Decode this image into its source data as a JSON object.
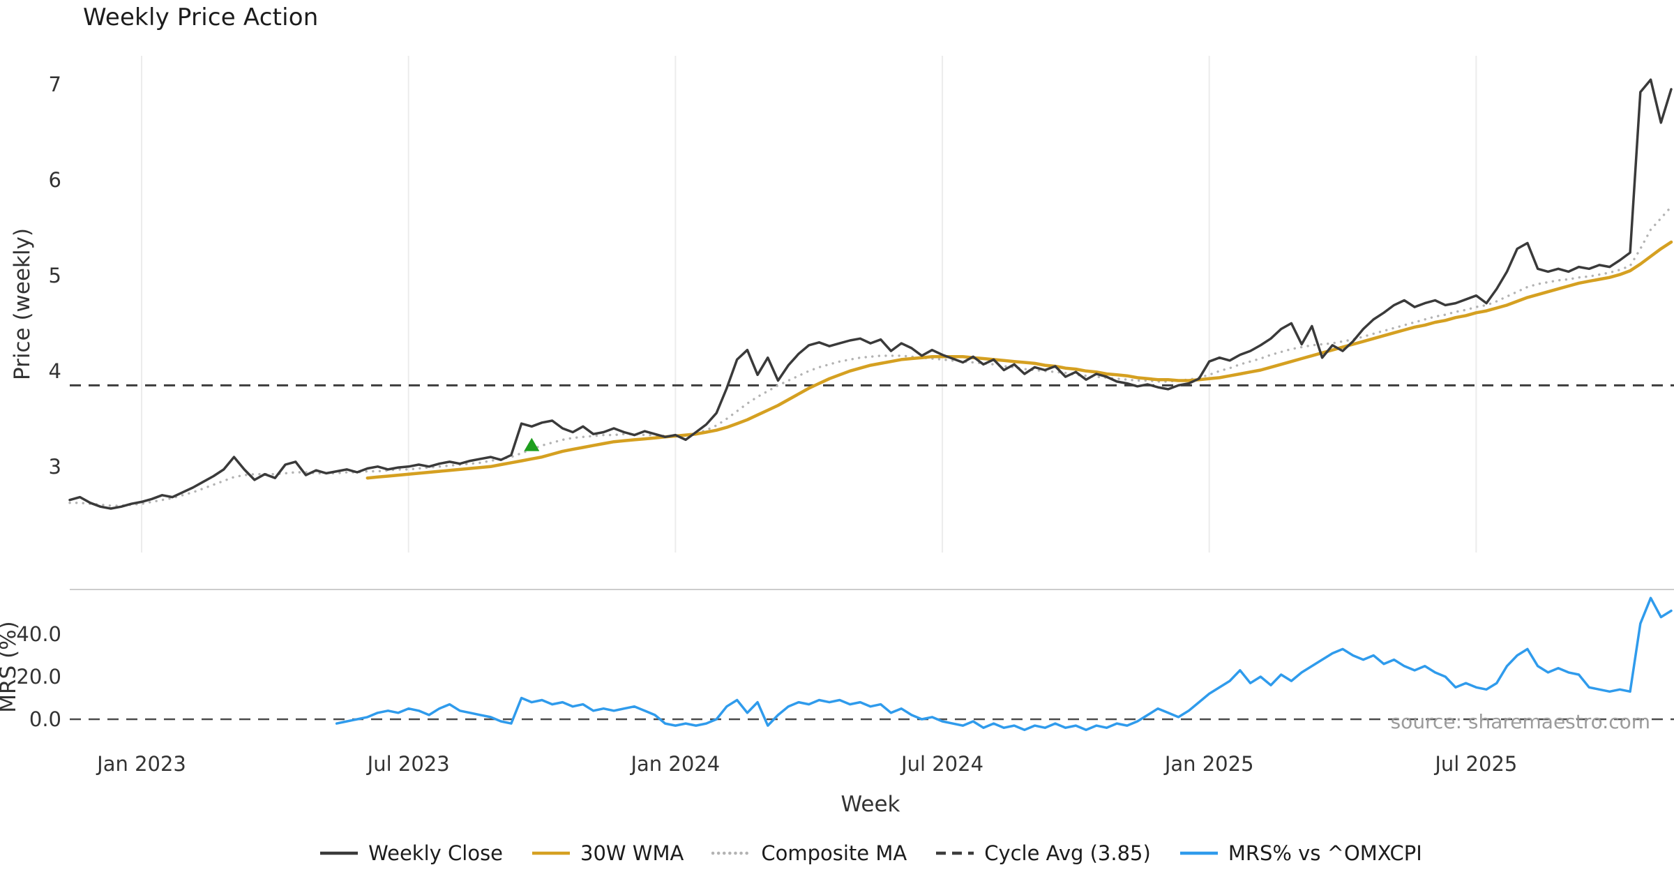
{
  "chart_data": {
    "type": "line",
    "title": "Weekly Price Action",
    "xlabel": "Week",
    "x_tick_labels": [
      "Jan 2023",
      "Jul 2023",
      "Jan 2024",
      "Jul 2024",
      "Jan 2025",
      "Jul 2025"
    ],
    "x_tick_weeks": [
      7,
      33,
      59,
      85,
      111,
      137
    ],
    "x_range_weeks": [
      0,
      156
    ],
    "colors": {
      "grid": "#ececec",
      "dark": "#3d3d3d",
      "divider": "#cccccc",
      "tick_text": "#333333",
      "source_text": "#9b9b9b"
    },
    "panels": [
      {
        "ylabel": "Price (weekly)",
        "ylim": [
          2.1,
          7.3
        ],
        "yticks": [
          3,
          4,
          5,
          6,
          7
        ],
        "cycle_avg": 3.85,
        "markers": [
          {
            "type": "triangle-up",
            "color": "#1e9e1e",
            "week": 45,
            "value": 3.22
          }
        ],
        "series": [
          {
            "name": "Weekly Close",
            "color": "#3a3a3a",
            "style": "solid",
            "width": 3.5,
            "values": [
              2.65,
              2.68,
              2.62,
              2.58,
              2.56,
              2.58,
              2.61,
              2.63,
              2.66,
              2.7,
              2.68,
              2.73,
              2.78,
              2.84,
              2.9,
              2.97,
              3.1,
              2.97,
              2.86,
              2.92,
              2.88,
              3.02,
              3.05,
              2.91,
              2.96,
              2.93,
              2.95,
              2.97,
              2.94,
              2.98,
              3.0,
              2.97,
              2.99,
              3.0,
              3.02,
              3.0,
              3.03,
              3.05,
              3.03,
              3.06,
              3.08,
              3.1,
              3.07,
              3.12,
              3.45,
              3.42,
              3.46,
              3.48,
              3.4,
              3.36,
              3.42,
              3.34,
              3.36,
              3.4,
              3.36,
              3.33,
              3.37,
              3.34,
              3.31,
              3.33,
              3.28,
              3.36,
              3.44,
              3.56,
              3.82,
              4.12,
              4.22,
              3.96,
              4.14,
              3.9,
              4.06,
              4.18,
              4.27,
              4.3,
              4.26,
              4.29,
              4.32,
              4.34,
              4.29,
              4.33,
              4.21,
              4.29,
              4.24,
              4.16,
              4.22,
              4.17,
              4.13,
              4.09,
              4.15,
              4.07,
              4.12,
              4.01,
              4.07,
              3.97,
              4.04,
              4.01,
              4.05,
              3.94,
              3.99,
              3.91,
              3.97,
              3.94,
              3.89,
              3.87,
              3.84,
              3.86,
              3.83,
              3.81,
              3.85,
              3.87,
              3.92,
              4.1,
              4.14,
              4.11,
              4.17,
              4.21,
              4.27,
              4.34,
              4.44,
              4.5,
              4.28,
              4.47,
              4.14,
              4.27,
              4.21,
              4.31,
              4.44,
              4.54,
              4.61,
              4.69,
              4.74,
              4.67,
              4.71,
              4.74,
              4.69,
              4.71,
              4.75,
              4.79,
              4.71,
              4.86,
              5.04,
              5.28,
              5.34,
              5.07,
              5.04,
              5.07,
              5.04,
              5.09,
              5.07,
              5.11,
              5.09,
              5.16,
              5.24,
              6.92,
              7.05,
              6.6,
              6.95
            ]
          },
          {
            "name": "30W WMA",
            "color": "#d5a021",
            "style": "solid",
            "width": 4.5,
            "values": [
              null,
              null,
              null,
              null,
              null,
              null,
              null,
              null,
              null,
              null,
              null,
              null,
              null,
              null,
              null,
              null,
              null,
              null,
              null,
              null,
              null,
              null,
              null,
              null,
              null,
              null,
              null,
              null,
              null,
              2.88,
              2.89,
              2.9,
              2.91,
              2.92,
              2.93,
              2.94,
              2.95,
              2.96,
              2.97,
              2.98,
              2.99,
              3.0,
              3.02,
              3.04,
              3.06,
              3.08,
              3.1,
              3.13,
              3.16,
              3.18,
              3.2,
              3.22,
              3.24,
              3.26,
              3.27,
              3.28,
              3.29,
              3.3,
              3.31,
              3.32,
              3.33,
              3.34,
              3.36,
              3.38,
              3.41,
              3.45,
              3.49,
              3.54,
              3.59,
              3.64,
              3.7,
              3.76,
              3.82,
              3.87,
              3.92,
              3.96,
              4.0,
              4.03,
              4.06,
              4.08,
              4.1,
              4.12,
              4.13,
              4.14,
              4.15,
              4.15,
              4.15,
              4.15,
              4.14,
              4.13,
              4.12,
              4.11,
              4.1,
              4.09,
              4.08,
              4.06,
              4.05,
              4.03,
              4.02,
              4.0,
              3.99,
              3.97,
              3.96,
              3.95,
              3.93,
              3.92,
              3.91,
              3.91,
              3.9,
              3.9,
              3.91,
              3.92,
              3.93,
              3.95,
              3.97,
              3.99,
              4.01,
              4.04,
              4.07,
              4.1,
              4.13,
              4.16,
              4.19,
              4.22,
              4.25,
              4.28,
              4.31,
              4.34,
              4.37,
              4.4,
              4.43,
              4.46,
              4.48,
              4.51,
              4.53,
              4.56,
              4.58,
              4.61,
              4.63,
              4.66,
              4.69,
              4.73,
              4.77,
              4.8,
              4.83,
              4.86,
              4.89,
              4.92,
              4.94,
              4.96,
              4.98,
              5.01,
              5.05,
              5.12,
              5.2,
              5.28,
              5.35
            ]
          },
          {
            "name": "Composite MA",
            "color": "#b3b3b3",
            "style": "dotted",
            "width": 3.4,
            "values": [
              2.62,
              2.62,
              2.61,
              2.6,
              2.59,
              2.59,
              2.6,
              2.61,
              2.63,
              2.65,
              2.67,
              2.7,
              2.73,
              2.77,
              2.81,
              2.85,
              2.89,
              2.91,
              2.92,
              2.92,
              2.92,
              2.93,
              2.94,
              2.94,
              2.93,
              2.93,
              2.93,
              2.94,
              2.94,
              2.95,
              2.95,
              2.96,
              2.97,
              2.97,
              2.98,
              2.99,
              3.0,
              3.01,
              3.02,
              3.03,
              3.04,
              3.06,
              3.08,
              3.1,
              3.14,
              3.18,
              3.22,
              3.25,
              3.28,
              3.3,
              3.31,
              3.32,
              3.33,
              3.33,
              3.34,
              3.34,
              3.33,
              3.33,
              3.32,
              3.32,
              3.33,
              3.35,
              3.38,
              3.43,
              3.5,
              3.58,
              3.66,
              3.73,
              3.79,
              3.85,
              3.9,
              3.95,
              4.0,
              4.04,
              4.07,
              4.1,
              4.12,
              4.14,
              4.15,
              4.16,
              4.16,
              4.16,
              4.15,
              4.14,
              4.13,
              4.12,
              4.11,
              4.1,
              4.09,
              4.08,
              4.07,
              4.05,
              4.04,
              4.02,
              4.01,
              4.0,
              3.99,
              3.98,
              3.96,
              3.95,
              3.94,
              3.93,
              3.92,
              3.91,
              3.9,
              3.9,
              3.89,
              3.89,
              3.9,
              3.91,
              3.93,
              3.96,
              4.0,
              4.03,
              4.07,
              4.1,
              4.13,
              4.17,
              4.2,
              4.23,
              4.25,
              4.27,
              4.28,
              4.29,
              4.31,
              4.33,
              4.36,
              4.39,
              4.42,
              4.45,
              4.48,
              4.51,
              4.54,
              4.57,
              4.59,
              4.62,
              4.64,
              4.67,
              4.69,
              4.73,
              4.78,
              4.83,
              4.88,
              4.91,
              4.93,
              4.95,
              4.96,
              4.98,
              4.99,
              5.01,
              5.03,
              5.06,
              5.1,
              5.28,
              5.48,
              5.6,
              5.72
            ]
          }
        ]
      },
      {
        "ylabel": "MRS (%)",
        "ylim": [
          -10.5,
          61
        ],
        "yticks": [
          0,
          20,
          40
        ],
        "ytick_labels": [
          "0.0",
          "20.0",
          "40.0"
        ],
        "zero_line": true,
        "source_text": "source: sharemaestro.com",
        "series": [
          {
            "name": "MRS% vs ^OMXCPI",
            "color": "#2f9bec",
            "style": "solid",
            "width": 3.5,
            "values": [
              null,
              null,
              null,
              null,
              null,
              null,
              null,
              null,
              null,
              null,
              null,
              null,
              null,
              null,
              null,
              null,
              null,
              null,
              null,
              null,
              null,
              null,
              null,
              null,
              null,
              null,
              -2,
              -1,
              0,
              1,
              3,
              4,
              3,
              5,
              4,
              2,
              5,
              7,
              4,
              3,
              2,
              1,
              -1,
              -2,
              10,
              8,
              9,
              7,
              8,
              6,
              7,
              4,
              5,
              4,
              5,
              6,
              4,
              2,
              -2,
              -3,
              -2,
              -3,
              -2,
              0,
              6,
              9,
              3,
              8,
              -3,
              2,
              6,
              8,
              7,
              9,
              8,
              9,
              7,
              8,
              6,
              7,
              3,
              5,
              2,
              0,
              1,
              -1,
              -2,
              -3,
              -1,
              -4,
              -2,
              -4,
              -3,
              -5,
              -3,
              -4,
              -2,
              -4,
              -3,
              -5,
              -3,
              -4,
              -2,
              -3,
              -1,
              2,
              5,
              3,
              1,
              4,
              8,
              12,
              15,
              18,
              23,
              17,
              20,
              16,
              21,
              18,
              22,
              25,
              28,
              31,
              33,
              30,
              28,
              30,
              26,
              28,
              25,
              23,
              25,
              22,
              20,
              15,
              17,
              15,
              14,
              17,
              25,
              30,
              33,
              25,
              22,
              24,
              22,
              21,
              15,
              14,
              13,
              14,
              13,
              45,
              57,
              48,
              51
            ]
          }
        ]
      }
    ],
    "legend": [
      {
        "label": "Weekly Close",
        "color": "#3a3a3a",
        "style": "solid"
      },
      {
        "label": "30W WMA",
        "color": "#d5a021",
        "style": "solid"
      },
      {
        "label": "Composite MA",
        "color": "#b3b3b3",
        "style": "dotted"
      },
      {
        "label": "Cycle Avg (3.85)",
        "color": "#3d3d3d",
        "style": "dashed"
      },
      {
        "label": "MRS% vs ^OMXCPI",
        "color": "#2f9bec",
        "style": "solid"
      }
    ]
  }
}
